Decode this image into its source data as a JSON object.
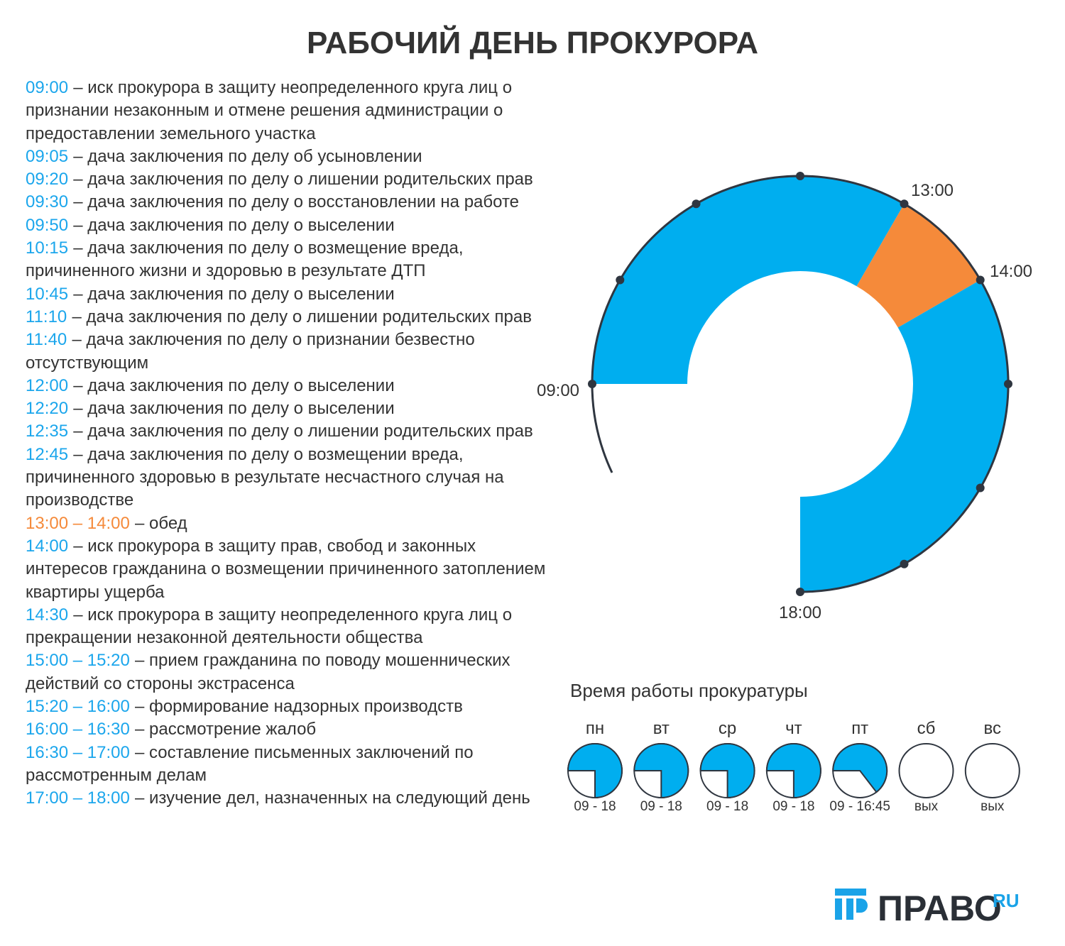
{
  "header": {
    "title": "РАБОЧИЙ ДЕНЬ ПРОКУРОРА"
  },
  "schedule": [
    {
      "time": "09:00",
      "text": "– иск прокурора в защиту неопределенного круга лиц о признании незаконным и отмене решения администрации о предоставлении земельного участка",
      "color": "#1ba6ec"
    },
    {
      "time": "09:05",
      "text": "– дача заключения по делу об усыновлении",
      "color": "#1ba6ec"
    },
    {
      "time": "09:20",
      "text": "– дача заключения по делу о лишении родительских прав",
      "color": "#1ba6ec"
    },
    {
      "time": "09:30",
      "text": "– дача заключения по делу о восстановлении на работе",
      "color": "#1ba6ec"
    },
    {
      "time": "09:50",
      "text": "– дача заключения по делу о выселении",
      "color": "#1ba6ec"
    },
    {
      "time": "10:15",
      "text": "– дача заключения по делу о возмещение вреда, причиненного жизни и здоровью в результате ДТП",
      "color": "#1ba6ec"
    },
    {
      "time": "10:45",
      "text": "– дача заключения по делу о выселении",
      "color": "#1ba6ec"
    },
    {
      "time": "11:10",
      "text": "– дача заключения по делу о лишении родительских прав",
      "color": "#1ba6ec"
    },
    {
      "time": "11:40",
      "text": "– дача заключения по делу о признании безвестно отсутствующим",
      "color": "#1ba6ec"
    },
    {
      "time": "12:00",
      "text": "– дача заключения по делу о выселении",
      "color": "#1ba6ec"
    },
    {
      "time": "12:20",
      "text": "– дача заключения по делу о выселении",
      "color": "#1ba6ec"
    },
    {
      "time": "12:35",
      "text": "– дача заключения по делу о лишении родительских прав",
      "color": "#1ba6ec"
    },
    {
      "time": "12:45",
      "text": "– дача заключения по делу о возмещении вреда, причиненного здоровью в результате несчастного случая на производстве",
      "color": "#1ba6ec"
    },
    {
      "time": "13:00 – 14:00",
      "text": "– обед",
      "color": "#f58a3a"
    },
    {
      "time": "14:00",
      "text": "– иск прокурора в защиту прав, свобод и законных интересов гражданина о возмещении причиненного затоплением квартиры ущерба",
      "color": "#1ba6ec"
    },
    {
      "time": "14:30",
      "text": "– иск прокурора в защиту неопределенного круга лиц о прекращении незаконной деятельности общества",
      "color": "#1ba6ec"
    },
    {
      "time": "15:00 – 15:20",
      "text": "– прием гражданина по поводу мошеннических действий со стороны экстрасенса",
      "color": "#1ba6ec"
    },
    {
      "time": "15:20 – 16:00",
      "text": "– формирование надзорных производств",
      "color": "#1ba6ec"
    },
    {
      "time": "16:00 – 16:30",
      "text": "– рассмотрение жалоб",
      "color": "#1ba6ec"
    },
    {
      "time": "16:30 – 17:00",
      "text": "– составление письменных заключений по рассмотренным делам",
      "color": "#1ba6ec"
    },
    {
      "time": "17:00 – 18:00",
      "text": "– изучение дел, назначенных на следующий день",
      "color": "#1ba6ec"
    }
  ],
  "clock": {
    "labels": [
      "09:00",
      "13:00",
      "14:00",
      "18:00"
    ]
  },
  "office_hours": {
    "title": "Время работы прокуратуры",
    "days": [
      {
        "name": "пн",
        "hours": "09 - 18"
      },
      {
        "name": "вт",
        "hours": "09 - 18"
      },
      {
        "name": "ср",
        "hours": "09 - 18"
      },
      {
        "name": "чт",
        "hours": "09 - 18"
      },
      {
        "name": "пт",
        "hours": "09 - 16:45"
      },
      {
        "name": "сб",
        "hours": "вых"
      },
      {
        "name": "вс",
        "hours": "вых"
      }
    ]
  },
  "logo": {
    "name": "ПРАВО",
    "suffix": "RU"
  }
}
